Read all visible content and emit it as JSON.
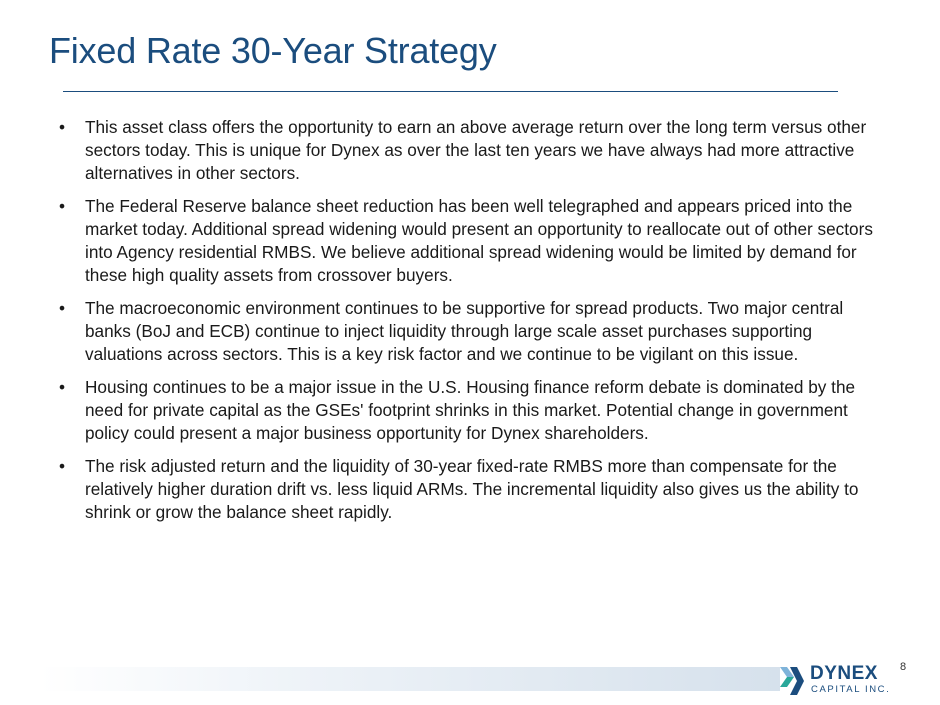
{
  "slide": {
    "title": "Fixed Rate 30-Year Strategy",
    "bullets": [
      "This asset class offers the opportunity to earn an above average return over the long term versus other sectors today. This is unique for Dynex as over the last ten years we have always had more attractive alternatives in other sectors.",
      "The Federal Reserve balance sheet reduction has been well telegraphed and appears priced into the market today. Additional spread widening would present an opportunity to reallocate out of other sectors into Agency residential RMBS. We believe additional spread widening would be limited by demand for these high quality assets from crossover buyers.",
      "The macroeconomic environment continues to be supportive for spread products. Two major central banks (BoJ and ECB) continue to inject liquidity through large scale asset purchases supporting valuations across sectors. This is a key risk factor and we continue to be vigilant on this issue.",
      "Housing continues to be a major issue in the U.S. Housing finance reform debate is dominated by the need for private capital as the GSEs' footprint shrinks in this market. Potential change in government policy could present a major business opportunity for Dynex shareholders.",
      "The risk adjusted return and the liquidity of 30-year fixed-rate RMBS more than compensate for the relatively higher duration drift vs. less liquid ARMs. The incremental liquidity also gives us the ability to shrink or grow the balance sheet rapidly."
    ],
    "bullet_char": "•",
    "page_number": "8"
  },
  "logo": {
    "name": "DYNEX",
    "subtitle": "CAPITAL INC.",
    "icon": "dynex-chevron-icon"
  },
  "colors": {
    "title": "#1b4d7e",
    "text": "#1a1a1a",
    "logo_blue": "#1b4d7e",
    "logo_teal": "#2aa89a",
    "logo_light_blue": "#7fb3d9"
  }
}
